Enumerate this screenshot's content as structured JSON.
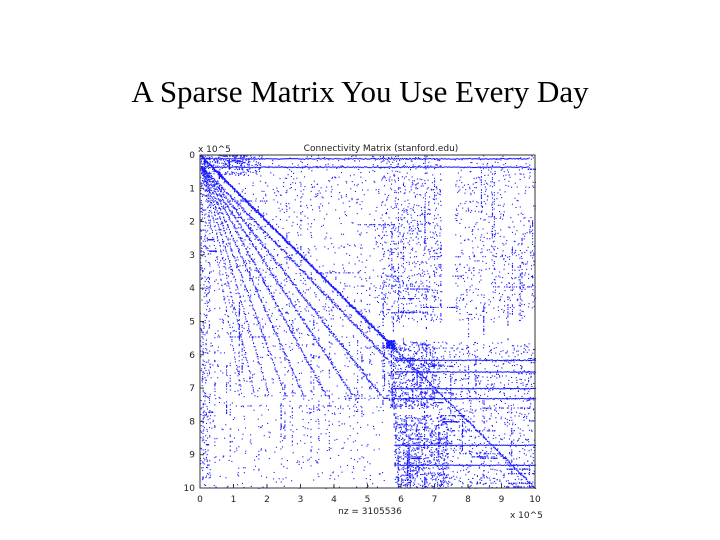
{
  "slide": {
    "title": "A Sparse Matrix You Use Every Day"
  },
  "chart_data": {
    "type": "heatmap",
    "subtype": "sparsity-pattern",
    "title": "Connectivity Matrix (stanford.edu)",
    "xlabel": "nz = 3105536",
    "ylabel": "",
    "x_multiplier": "x 10^5",
    "y_multiplier": "x 10^5",
    "x_ticks": [
      "0",
      "1",
      "2",
      "3",
      "4",
      "5",
      "6",
      "7",
      "8",
      "9",
      "10"
    ],
    "y_ticks": [
      "0",
      "1",
      "2",
      "3",
      "4",
      "5",
      "6",
      "7",
      "8",
      "9",
      "10"
    ],
    "xlim": [
      0,
      10
    ],
    "ylim": [
      0,
      10
    ],
    "y_reversed": true,
    "marker_color": "#1a1aff",
    "grid": false,
    "dense_blocks": [
      {
        "x": [
          0,
          1.8
        ],
        "y": [
          0,
          0.6
        ],
        "density": 0.75
      },
      {
        "x": [
          0,
          0.3
        ],
        "y": [
          0,
          10
        ],
        "density": 0.35
      },
      {
        "x": [
          5.6,
          7.0
        ],
        "y": [
          5.6,
          7.6
        ],
        "density": 0.85
      },
      {
        "x": [
          5.8,
          7.4
        ],
        "y": [
          7.8,
          10.0
        ],
        "density": 0.8
      },
      {
        "x": [
          7.0,
          10.0
        ],
        "y": [
          5.6,
          10.0
        ],
        "density": 0.25
      },
      {
        "x": [
          5.4,
          7.2
        ],
        "y": [
          0,
          5.0
        ],
        "density": 0.3
      },
      {
        "x": [
          7.6,
          10.0
        ],
        "y": [
          0,
          5.0
        ],
        "density": 0.18
      },
      {
        "x": [
          0,
          5.5
        ],
        "y": [
          0,
          5.5
        ],
        "density": 0.12
      },
      {
        "x": [
          0,
          5.5
        ],
        "y": [
          5.6,
          10.0
        ],
        "density": 0.08
      }
    ]
  }
}
